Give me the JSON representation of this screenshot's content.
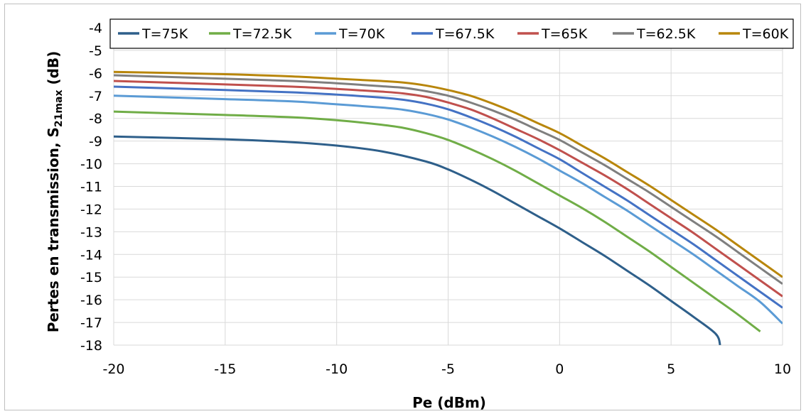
{
  "chart_data": {
    "type": "line",
    "xlabel": "Pe (dBm)",
    "ylabel": {
      "prefix": "Pertes en transmission, ",
      "symbol": "S",
      "subscript": "21max",
      "unit": " (dB)"
    },
    "xlim": [
      -20,
      10
    ],
    "ylim": [
      -18,
      -4
    ],
    "xticks": [
      -20,
      -15,
      -10,
      -5,
      0,
      5,
      10
    ],
    "yticks": [
      -4,
      -5,
      -6,
      -7,
      -8,
      -9,
      -10,
      -11,
      -12,
      -13,
      -14,
      -15,
      -16,
      -17,
      -18
    ],
    "grid": true,
    "legend": "top",
    "series": [
      {
        "name": "T=75K",
        "color": "#2e5f8a",
        "x": [
          -20,
          -15,
          -12,
          -10,
          -8,
          -6,
          -5,
          -4,
          -3,
          -2,
          -1,
          0,
          1,
          2,
          3,
          4,
          5,
          6,
          7,
          7.2
        ],
        "y": [
          -8.8,
          -8.92,
          -9.05,
          -9.2,
          -9.45,
          -9.9,
          -10.25,
          -10.7,
          -11.2,
          -11.75,
          -12.3,
          -12.85,
          -13.45,
          -14.05,
          -14.7,
          -15.35,
          -16.05,
          -16.75,
          -17.5,
          -18.0
        ]
      },
      {
        "name": "T=72.5K",
        "color": "#70ad47",
        "x": [
          -20,
          -15,
          -12,
          -10,
          -8,
          -7,
          -6,
          -5,
          -4,
          -3,
          -2,
          -1,
          0,
          1,
          2,
          3,
          4,
          5,
          6,
          7,
          8,
          9
        ],
        "y": [
          -7.7,
          -7.85,
          -7.95,
          -8.08,
          -8.28,
          -8.42,
          -8.65,
          -8.95,
          -9.35,
          -9.8,
          -10.3,
          -10.85,
          -11.4,
          -11.95,
          -12.55,
          -13.2,
          -13.85,
          -14.55,
          -15.25,
          -15.95,
          -16.65,
          -17.4
        ]
      },
      {
        "name": "T=70K",
        "color": "#5b9bd5",
        "x": [
          -20,
          -15,
          -12,
          -10,
          -8,
          -7,
          -6,
          -5,
          -4,
          -3,
          -2,
          -1,
          0,
          1,
          2,
          3,
          4,
          5,
          6,
          7,
          8,
          9,
          10
        ],
        "y": [
          -7.0,
          -7.15,
          -7.25,
          -7.38,
          -7.52,
          -7.62,
          -7.8,
          -8.05,
          -8.4,
          -8.8,
          -9.25,
          -9.75,
          -10.3,
          -10.85,
          -11.45,
          -12.05,
          -12.7,
          -13.35,
          -14.0,
          -14.7,
          -15.4,
          -16.1,
          -17.05
        ]
      },
      {
        "name": "T=67.5K",
        "color": "#4472c4",
        "x": [
          -20,
          -15,
          -12,
          -10,
          -8,
          -7,
          -6,
          -5,
          -4,
          -3,
          -2,
          -1,
          0,
          1,
          2,
          3,
          4,
          5,
          6,
          7,
          8,
          9,
          10
        ],
        "y": [
          -6.6,
          -6.75,
          -6.85,
          -6.95,
          -7.08,
          -7.18,
          -7.35,
          -7.6,
          -7.95,
          -8.35,
          -8.8,
          -9.3,
          -9.8,
          -10.4,
          -11.0,
          -11.6,
          -12.25,
          -12.9,
          -13.55,
          -14.25,
          -14.95,
          -15.65,
          -16.35
        ]
      },
      {
        "name": "T=65K",
        "color": "#c0504d",
        "x": [
          -20,
          -15,
          -12,
          -10,
          -8,
          -7,
          -6,
          -5,
          -4,
          -3,
          -2,
          -1,
          0,
          1,
          2,
          3,
          4,
          5,
          6,
          7,
          8,
          9,
          10
        ],
        "y": [
          -6.35,
          -6.5,
          -6.6,
          -6.7,
          -6.82,
          -6.9,
          -7.05,
          -7.3,
          -7.6,
          -8.0,
          -8.45,
          -8.9,
          -9.4,
          -9.95,
          -10.5,
          -11.1,
          -11.75,
          -12.4,
          -13.05,
          -13.75,
          -14.45,
          -15.15,
          -15.85
        ]
      },
      {
        "name": "T=62.5K",
        "color": "#7f7f7f",
        "x": [
          -20,
          -15,
          -12,
          -10,
          -8,
          -7,
          -6,
          -5,
          -4,
          -3,
          -2,
          -1,
          0,
          1,
          2,
          3,
          4,
          5,
          6,
          7,
          8,
          9,
          10
        ],
        "y": [
          -6.1,
          -6.25,
          -6.35,
          -6.45,
          -6.58,
          -6.65,
          -6.8,
          -7.0,
          -7.3,
          -7.65,
          -8.05,
          -8.5,
          -8.95,
          -9.5,
          -10.05,
          -10.65,
          -11.25,
          -11.9,
          -12.55,
          -13.2,
          -13.9,
          -14.6,
          -15.3
        ]
      },
      {
        "name": "T=60K",
        "color": "#b8860b",
        "x": [
          -20,
          -15,
          -12,
          -10,
          -8,
          -7,
          -6,
          -5,
          -4,
          -3,
          -2,
          -1,
          0,
          1,
          2,
          3,
          4,
          5,
          6,
          7,
          8,
          9,
          10
        ],
        "y": [
          -5.95,
          -6.05,
          -6.15,
          -6.25,
          -6.35,
          -6.42,
          -6.55,
          -6.75,
          -7.0,
          -7.35,
          -7.75,
          -8.2,
          -8.65,
          -9.2,
          -9.75,
          -10.35,
          -10.95,
          -11.6,
          -12.25,
          -12.9,
          -13.6,
          -14.3,
          -15.0
        ]
      }
    ]
  }
}
